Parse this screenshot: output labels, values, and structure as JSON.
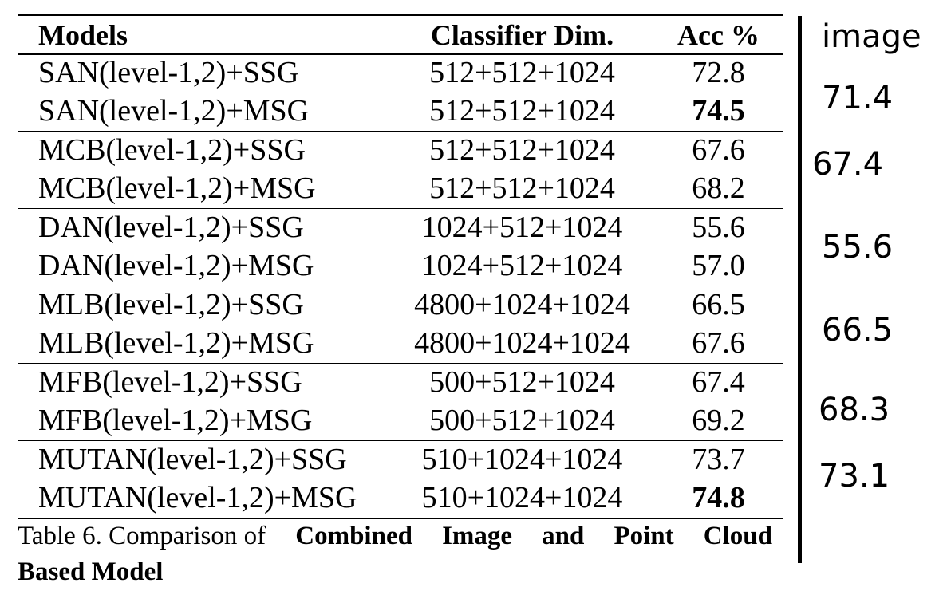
{
  "table": {
    "headers": {
      "models": "Models",
      "classifier_dim": "Classifier Dim.",
      "acc": "Acc %"
    },
    "groups": [
      {
        "rows": [
          {
            "model": "SAN(level-1,2)+SSG",
            "dim": "512+512+1024",
            "acc": "72.8",
            "bold": false
          },
          {
            "model": "SAN(level-1,2)+MSG",
            "dim": "512+512+1024",
            "acc": "74.5",
            "bold": true
          }
        ]
      },
      {
        "rows": [
          {
            "model": "MCB(level-1,2)+SSG",
            "dim": "512+512+1024",
            "acc": "67.6",
            "bold": false
          },
          {
            "model": "MCB(level-1,2)+MSG",
            "dim": "512+512+1024",
            "acc": "68.2",
            "bold": false
          }
        ]
      },
      {
        "rows": [
          {
            "model": "DAN(level-1,2)+SSG",
            "dim": "1024+512+1024",
            "acc": "55.6",
            "bold": false
          },
          {
            "model": "DAN(level-1,2)+MSG",
            "dim": "1024+512+1024",
            "acc": "57.0",
            "bold": false
          }
        ]
      },
      {
        "rows": [
          {
            "model": "MLB(level-1,2)+SSG",
            "dim": "4800+1024+1024",
            "acc": "66.5",
            "bold": false
          },
          {
            "model": "MLB(level-1,2)+MSG",
            "dim": "4800+1024+1024",
            "acc": "67.6",
            "bold": false
          }
        ]
      },
      {
        "rows": [
          {
            "model": "MFB(level-1,2)+SSG",
            "dim": "500+512+1024",
            "acc": "67.4",
            "bold": false
          },
          {
            "model": "MFB(level-1,2)+MSG",
            "dim": "500+512+1024",
            "acc": "69.2",
            "bold": false
          }
        ]
      },
      {
        "rows": [
          {
            "model": "MUTAN(level-1,2)+SSG",
            "dim": "510+1024+1024",
            "acc": "73.7",
            "bold": false
          },
          {
            "model": "MUTAN(level-1,2)+MSG",
            "dim": "510+1024+1024",
            "acc": "74.8",
            "bold": true
          }
        ]
      }
    ]
  },
  "caption": {
    "prefix": "Table 6. Comparison of",
    "bold_words": [
      "Combined",
      "Image",
      "and",
      "Point",
      "Cloud"
    ],
    "bold_line2": "Based Model"
  },
  "side_column": {
    "header": "image",
    "values": [
      "71.4",
      "67.4",
      "55.6",
      "66.5",
      "68.3",
      "73.1"
    ]
  }
}
